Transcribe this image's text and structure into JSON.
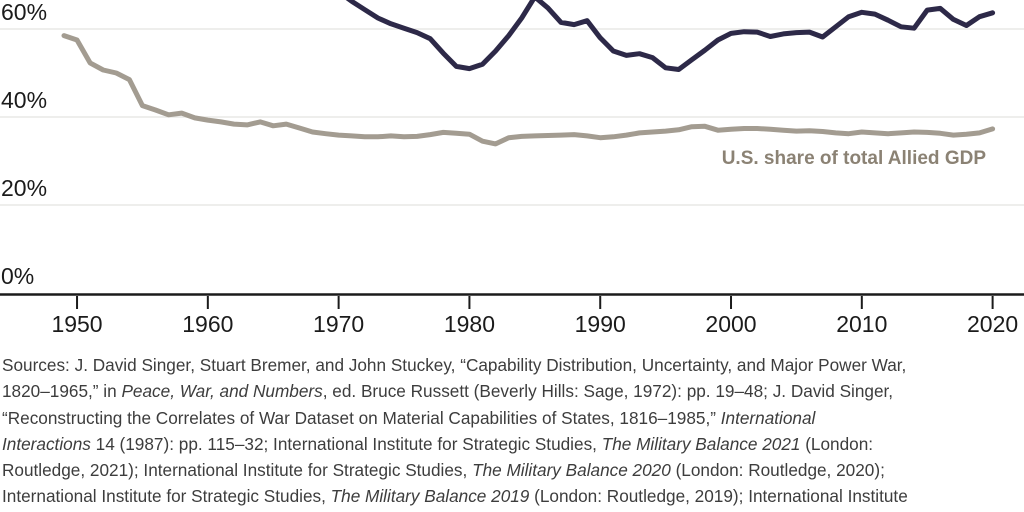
{
  "chart_data": {
    "type": "line",
    "title": "",
    "xlabel": "",
    "ylabel": "",
    "grid": "horizontal",
    "x_domain": [
      1944.11,
      2022.4
    ],
    "y_domain_visible": [
      0,
      66.6
    ],
    "x_ticks": [
      1950,
      1960,
      1970,
      1980,
      1990,
      2000,
      2010,
      2020
    ],
    "y_ticks": [
      {
        "value": 0,
        "label": "0%"
      },
      {
        "value": 20,
        "label": "20%"
      },
      {
        "value": 40,
        "label": "40%"
      },
      {
        "value": 60,
        "label": "60%"
      }
    ],
    "series": [
      {
        "name": "unlabeled dark line (label cut off above chart)",
        "color": "#2d2948",
        "points": [
          [
            1970,
            68.5
          ],
          [
            1971,
            66.3
          ],
          [
            1972,
            64.4
          ],
          [
            1973,
            62.5
          ],
          [
            1974,
            61.2
          ],
          [
            1975,
            60.2
          ],
          [
            1976,
            59.2
          ],
          [
            1977,
            57.8
          ],
          [
            1978,
            54.5
          ],
          [
            1979,
            51.5
          ],
          [
            1980,
            51.0
          ],
          [
            1981,
            52.0
          ],
          [
            1982,
            55.0
          ],
          [
            1983,
            58.5
          ],
          [
            1984,
            62.5
          ],
          [
            1985,
            67.3
          ],
          [
            1986,
            64.8
          ],
          [
            1987,
            61.5
          ],
          [
            1988,
            61.0
          ],
          [
            1989,
            61.9
          ],
          [
            1990,
            58.0
          ],
          [
            1991,
            55.0
          ],
          [
            1992,
            54.0
          ],
          [
            1993,
            54.4
          ],
          [
            1994,
            53.5
          ],
          [
            1995,
            51.2
          ],
          [
            1996,
            50.8
          ],
          [
            1997,
            53.0
          ],
          [
            1998,
            55.2
          ],
          [
            1999,
            57.5
          ],
          [
            2000,
            59.0
          ],
          [
            2001,
            59.4
          ],
          [
            2002,
            59.3
          ],
          [
            2003,
            58.3
          ],
          [
            2004,
            58.9
          ],
          [
            2005,
            59.2
          ],
          [
            2006,
            59.3
          ],
          [
            2007,
            58.2
          ],
          [
            2008,
            60.5
          ],
          [
            2009,
            62.8
          ],
          [
            2010,
            63.8
          ],
          [
            2011,
            63.4
          ],
          [
            2012,
            62.0
          ],
          [
            2013,
            60.5
          ],
          [
            2014,
            60.2
          ],
          [
            2015,
            64.3
          ],
          [
            2016,
            64.7
          ],
          [
            2017,
            62.2
          ],
          [
            2018,
            60.8
          ],
          [
            2019,
            62.8
          ],
          [
            2020,
            63.7
          ]
        ]
      },
      {
        "name": "U.S. share of total Allied GDP",
        "color": "#a39c91",
        "points": [
          [
            1949,
            58.5
          ],
          [
            1950,
            57.5
          ],
          [
            1951,
            52.3
          ],
          [
            1952,
            50.7
          ],
          [
            1953,
            50.0
          ],
          [
            1954,
            48.5
          ],
          [
            1955,
            42.6
          ],
          [
            1956,
            41.6
          ],
          [
            1957,
            40.5
          ],
          [
            1958,
            40.9
          ],
          [
            1959,
            39.8
          ],
          [
            1960,
            39.3
          ],
          [
            1961,
            38.9
          ],
          [
            1962,
            38.4
          ],
          [
            1963,
            38.2
          ],
          [
            1964,
            38.9
          ],
          [
            1965,
            38.0
          ],
          [
            1966,
            38.4
          ],
          [
            1967,
            37.5
          ],
          [
            1968,
            36.6
          ],
          [
            1969,
            36.2
          ],
          [
            1970,
            35.9
          ],
          [
            1971,
            35.7
          ],
          [
            1972,
            35.5
          ],
          [
            1973,
            35.5
          ],
          [
            1974,
            35.7
          ],
          [
            1975,
            35.5
          ],
          [
            1976,
            35.6
          ],
          [
            1977,
            36.0
          ],
          [
            1978,
            36.5
          ],
          [
            1979,
            36.3
          ],
          [
            1980,
            36.1
          ],
          [
            1981,
            34.5
          ],
          [
            1982,
            33.9
          ],
          [
            1983,
            35.3
          ],
          [
            1984,
            35.6
          ],
          [
            1985,
            35.7
          ],
          [
            1986,
            35.8
          ],
          [
            1987,
            35.9
          ],
          [
            1988,
            36.0
          ],
          [
            1989,
            35.7
          ],
          [
            1990,
            35.3
          ],
          [
            1991,
            35.5
          ],
          [
            1992,
            35.9
          ],
          [
            1993,
            36.4
          ],
          [
            1994,
            36.6
          ],
          [
            1995,
            36.8
          ],
          [
            1996,
            37.1
          ],
          [
            1997,
            37.8
          ],
          [
            1998,
            37.9
          ],
          [
            1999,
            37.0
          ],
          [
            2000,
            37.2
          ],
          [
            2001,
            37.4
          ],
          [
            2002,
            37.4
          ],
          [
            2003,
            37.2
          ],
          [
            2004,
            37.0
          ],
          [
            2005,
            36.8
          ],
          [
            2006,
            36.9
          ],
          [
            2007,
            36.7
          ],
          [
            2008,
            36.4
          ],
          [
            2009,
            36.2
          ],
          [
            2010,
            36.6
          ],
          [
            2011,
            36.4
          ],
          [
            2012,
            36.2
          ],
          [
            2013,
            36.4
          ],
          [
            2014,
            36.6
          ],
          [
            2015,
            36.5
          ],
          [
            2016,
            36.3
          ],
          [
            2017,
            35.9
          ],
          [
            2018,
            36.1
          ],
          [
            2019,
            36.4
          ],
          [
            2020,
            37.3
          ]
        ]
      }
    ],
    "annotations": [
      {
        "text": "U.S. share of total Allied GDP",
        "color": "#8b8274"
      }
    ]
  },
  "colors": {
    "background": "#ffffff",
    "gridline": "#e9e8e5",
    "axis": "#1b1b1b",
    "tick_label": "#1b1b1b",
    "source_text": "#3d3d3d"
  },
  "sources": {
    "lines": [
      [
        {
          "t": "Sources: J. David Singer, Stuart Bremer, and John Stuckey, “Capability Distribution, Uncertainty, and Major Power War,"
        }
      ],
      [
        {
          "t": "1820–1965,” in "
        },
        {
          "t": "Peace, War, and Numbers",
          "i": true
        },
        {
          "t": ", ed. Bruce Russett (Beverly Hills: Sage, 1972): pp. 19–48; J. David Singer,"
        }
      ],
      [
        {
          "t": "“Reconstructing the Correlates of War Dataset on Material Capabilities of States, 1816–1985,” "
        },
        {
          "t": "International",
          "i": true
        }
      ],
      [
        {
          "t": "Interactions",
          "i": true
        },
        {
          "t": " 14 (1987): pp. 115–32; International Institute for Strategic Studies, "
        },
        {
          "t": "The Military Balance 2021",
          "i": true
        },
        {
          "t": " (London:"
        }
      ],
      [
        {
          "t": "Routledge, 2021); International Institute for Strategic Studies, "
        },
        {
          "t": "The Military Balance 2020",
          "i": true
        },
        {
          "t": " (London: Routledge, 2020);"
        }
      ],
      [
        {
          "t": "International Institute for Strategic Studies, "
        },
        {
          "t": "The Military Balance 2019",
          "i": true
        },
        {
          "t": " (London: Routledge, 2019); International Institute"
        }
      ]
    ]
  }
}
